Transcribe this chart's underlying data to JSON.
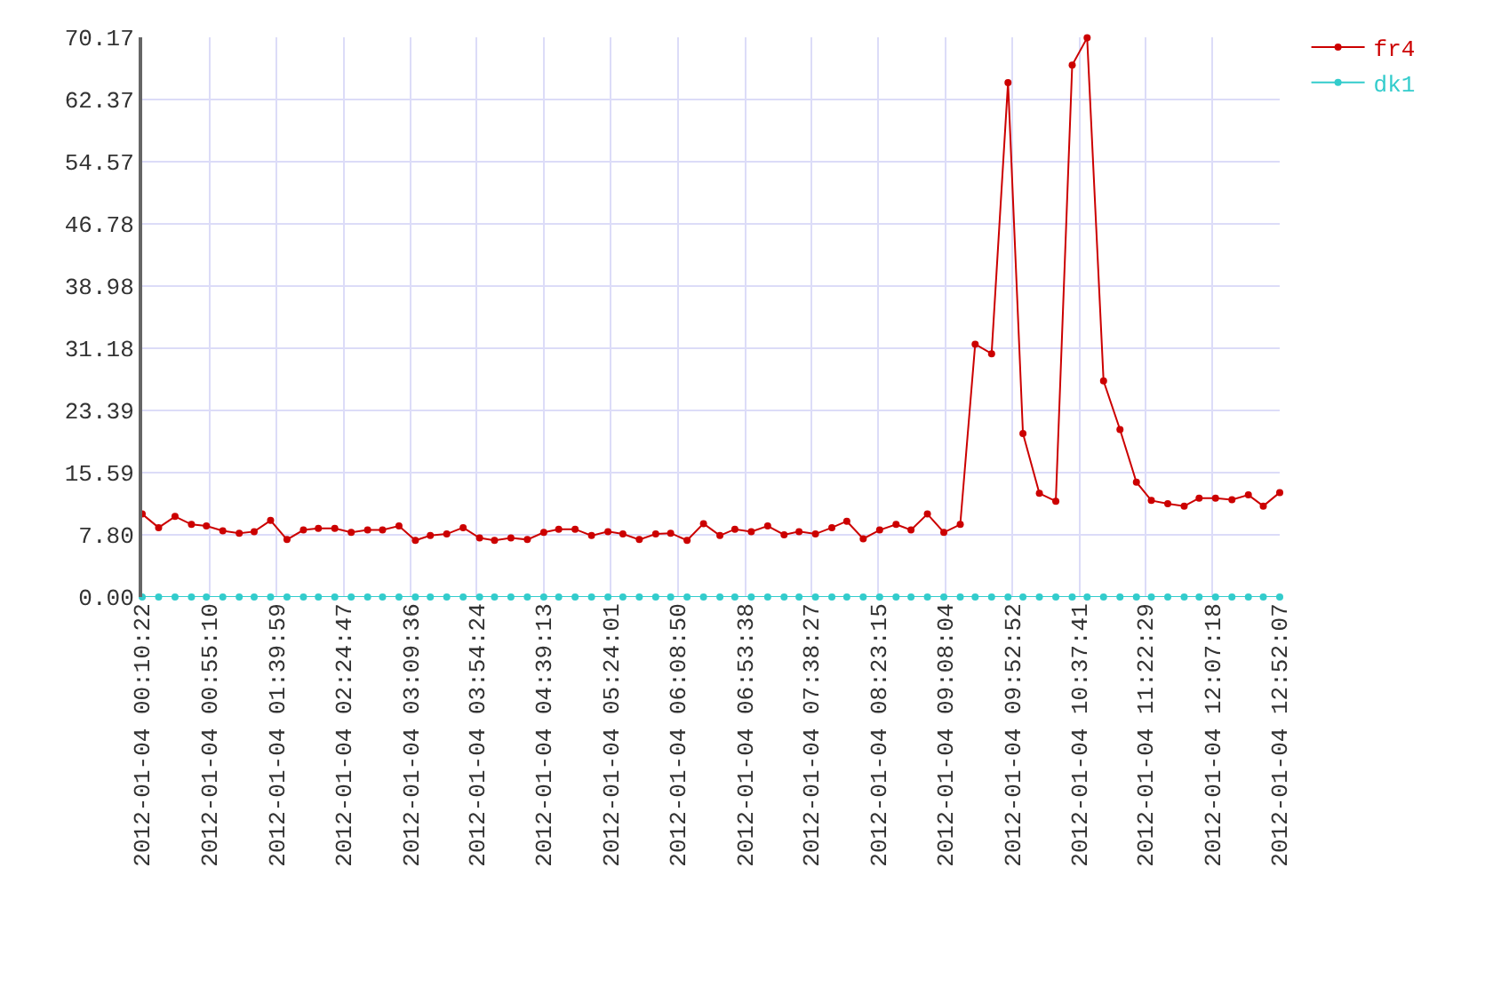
{
  "chart_data": {
    "type": "line",
    "x": [
      "2012-01-04T00:10",
      "2012-01-04T00:21",
      "2012-01-04T00:32",
      "2012-01-04T00:43",
      "2012-01-04T00:53",
      "2012-01-04T01:04",
      "2012-01-04T01:15",
      "2012-01-04T01:25",
      "2012-01-04T01:36",
      "2012-01-04T01:47",
      "2012-01-04T01:58",
      "2012-01-04T02:08",
      "2012-01-04T02:19",
      "2012-01-04T02:30",
      "2012-01-04T02:41",
      "2012-01-04T02:51",
      "2012-01-04T03:02",
      "2012-01-04T03:13",
      "2012-01-04T03:23",
      "2012-01-04T03:34",
      "2012-01-04T03:45",
      "2012-01-04T03:56",
      "2012-01-04T04:06",
      "2012-01-04T04:17",
      "2012-01-04T04:28",
      "2012-01-04T04:39",
      "2012-01-04T04:49",
      "2012-01-04T05:00",
      "2012-01-04T05:11",
      "2012-01-04T05:22",
      "2012-01-04T05:32",
      "2012-01-04T05:43",
      "2012-01-04T05:54",
      "2012-01-04T06:04",
      "2012-01-04T06:15",
      "2012-01-04T06:26",
      "2012-01-04T06:37",
      "2012-01-04T06:47",
      "2012-01-04T06:58",
      "2012-01-04T07:09",
      "2012-01-04T07:20",
      "2012-01-04T07:30",
      "2012-01-04T07:41",
      "2012-01-04T07:52",
      "2012-01-04T08:02",
      "2012-01-04T08:13",
      "2012-01-04T08:24",
      "2012-01-04T08:35",
      "2012-01-04T08:45",
      "2012-01-04T08:56",
      "2012-01-04T09:07",
      "2012-01-04T09:18",
      "2012-01-04T09:28",
      "2012-01-04T09:39",
      "2012-01-04T09:50",
      "2012-01-04T10:00",
      "2012-01-04T10:11",
      "2012-01-04T10:22",
      "2012-01-04T10:33",
      "2012-01-04T10:43",
      "2012-01-04T10:54",
      "2012-01-04T11:05",
      "2012-01-04T11:16",
      "2012-01-04T11:26",
      "2012-01-04T11:37",
      "2012-01-04T11:48",
      "2012-01-04T11:58",
      "2012-01-04T12:09",
      "2012-01-04T12:20",
      "2012-01-04T12:31",
      "2012-01-04T12:41",
      "2012-01-04T12:52"
    ],
    "series": [
      {
        "name": "fr4",
        "color": "#cc0000",
        "values": [
          10.4,
          8.7,
          10.1,
          9.1,
          8.9,
          8.3,
          8.0,
          8.2,
          9.6,
          7.2,
          8.4,
          8.6,
          8.6,
          8.1,
          8.4,
          8.4,
          8.9,
          7.1,
          7.7,
          7.9,
          8.7,
          7.4,
          7.1,
          7.4,
          7.2,
          8.1,
          8.5,
          8.5,
          7.7,
          8.2,
          7.9,
          7.2,
          7.9,
          8.0,
          7.1,
          9.2,
          7.7,
          8.5,
          8.2,
          8.9,
          7.8,
          8.2,
          7.9,
          8.7,
          9.5,
          7.3,
          8.4,
          9.1,
          8.4,
          10.4,
          8.1,
          9.1,
          31.7,
          30.5,
          64.5,
          20.5,
          13.0,
          12.0,
          66.7,
          70.1,
          27.1,
          21.0,
          14.4,
          12.1,
          11.7,
          11.4,
          12.4,
          12.4,
          12.2,
          12.8,
          11.4,
          13.1
        ]
      },
      {
        "name": "dk1",
        "color": "#33cccc",
        "values": [
          0,
          0,
          0,
          0,
          0,
          0,
          0,
          0,
          0,
          0,
          0,
          0,
          0,
          0,
          0,
          0,
          0,
          0,
          0,
          0,
          0,
          0,
          0,
          0,
          0,
          0,
          0,
          0,
          0,
          0,
          0,
          0,
          0,
          0,
          0,
          0,
          0,
          0,
          0,
          0,
          0,
          0,
          0,
          0,
          0,
          0,
          0,
          0,
          0,
          0,
          0,
          0,
          0,
          0,
          0,
          0,
          0,
          0,
          0,
          0,
          0,
          0,
          0,
          0,
          0,
          0,
          0,
          0,
          0,
          0,
          0,
          0
        ]
      }
    ],
    "xlim": [
      "2012-01-04T00:10",
      "2012-01-04T12:52"
    ],
    "xticks": [
      {
        "value": "2012-01-04T00:10",
        "label": "2012-01-04 00:10:22"
      },
      {
        "value": "2012-01-04T00:55",
        "label": "2012-01-04 00:55:10"
      },
      {
        "value": "2012-01-04T01:40",
        "label": "2012-01-04 01:39:59"
      },
      {
        "value": "2012-01-04T02:25",
        "label": "2012-01-04 02:24:47"
      },
      {
        "value": "2012-01-04T03:10",
        "label": "2012-01-04 03:09:36"
      },
      {
        "value": "2012-01-04T03:54",
        "label": "2012-01-04 03:54:24"
      },
      {
        "value": "2012-01-04T04:39",
        "label": "2012-01-04 04:39:13"
      },
      {
        "value": "2012-01-04T05:24",
        "label": "2012-01-04 05:24:01"
      },
      {
        "value": "2012-01-04T06:09",
        "label": "2012-01-04 06:08:50"
      },
      {
        "value": "2012-01-04T06:54",
        "label": "2012-01-04 06:53:38"
      },
      {
        "value": "2012-01-04T07:38",
        "label": "2012-01-04 07:38:27"
      },
      {
        "value": "2012-01-04T08:23",
        "label": "2012-01-04 08:23:15"
      },
      {
        "value": "2012-01-04T09:08",
        "label": "2012-01-04 09:08:04"
      },
      {
        "value": "2012-01-04T09:53",
        "label": "2012-01-04 09:52:52"
      },
      {
        "value": "2012-01-04T10:38",
        "label": "2012-01-04 10:37:41"
      },
      {
        "value": "2012-01-04T11:22",
        "label": "2012-01-04 11:22:29"
      },
      {
        "value": "2012-01-04T12:07",
        "label": "2012-01-04 12:07:18"
      },
      {
        "value": "2012-01-04T12:52",
        "label": "2012-01-04 12:52:07"
      }
    ],
    "ylim": [
      0,
      70.17
    ],
    "yticks": [
      {
        "value": 0,
        "label": "0.00"
      },
      {
        "value": 7.8,
        "label": "7.80"
      },
      15.59,
      23.39,
      31.18,
      38.98,
      46.78,
      54.57,
      62.37,
      70.17
    ],
    "grid": true,
    "legend": "top right",
    "marker": "circle",
    "line_style": "solid"
  }
}
